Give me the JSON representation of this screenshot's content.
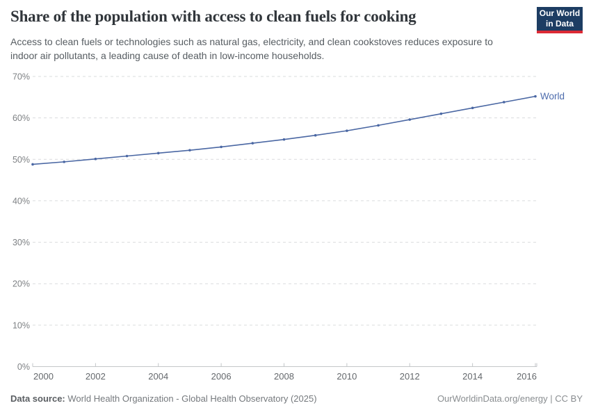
{
  "header": {
    "title": "Share of the population with access to clean fuels for cooking",
    "subtitle": "Access to clean fuels or technologies such as natural gas, electricity, and clean cookstoves reduces exposure to indoor air pollutants, a leading cause of death in low-income households.",
    "logo": {
      "line1": "Our World",
      "line2": "in Data",
      "bg_color": "#1d3d63",
      "accent_color": "#dc2a35"
    }
  },
  "chart_data": {
    "type": "line",
    "title": "Share of the population with access to clean fuels for cooking",
    "xlabel": "",
    "ylabel": "",
    "xlim": [
      2000,
      2016
    ],
    "ylim": [
      0,
      70
    ],
    "grid": "horizontal-dashed",
    "legend_position": "end-of-line-label",
    "x": [
      2000,
      2001,
      2002,
      2003,
      2004,
      2005,
      2006,
      2007,
      2008,
      2009,
      2010,
      2011,
      2012,
      2013,
      2014,
      2015,
      2016
    ],
    "series": [
      {
        "name": "World",
        "color": "#4a67a3",
        "values": [
          48.8,
          49.4,
          50.1,
          50.8,
          51.5,
          52.2,
          53.0,
          53.9,
          54.8,
          55.8,
          56.9,
          58.2,
          59.6,
          61.0,
          62.4,
          63.8,
          65.2
        ]
      }
    ],
    "xticks": [
      2000,
      2002,
      2004,
      2006,
      2008,
      2010,
      2012,
      2014,
      2016
    ],
    "xtick_labels": [
      "2000",
      "2002",
      "2004",
      "2006",
      "2008",
      "2010",
      "2012",
      "2014",
      "2016"
    ],
    "yticks": [
      0,
      10,
      20,
      30,
      40,
      50,
      60,
      70
    ],
    "ytick_labels": [
      "0%",
      "10%",
      "20%",
      "30%",
      "40%",
      "50%",
      "60%",
      "70%"
    ]
  },
  "footer": {
    "datasource_label": "Data source:",
    "datasource_text": "World Health Organization - Global Health Observatory (2025)",
    "credit_text": "OurWorldinData.org/energy | CC BY"
  }
}
